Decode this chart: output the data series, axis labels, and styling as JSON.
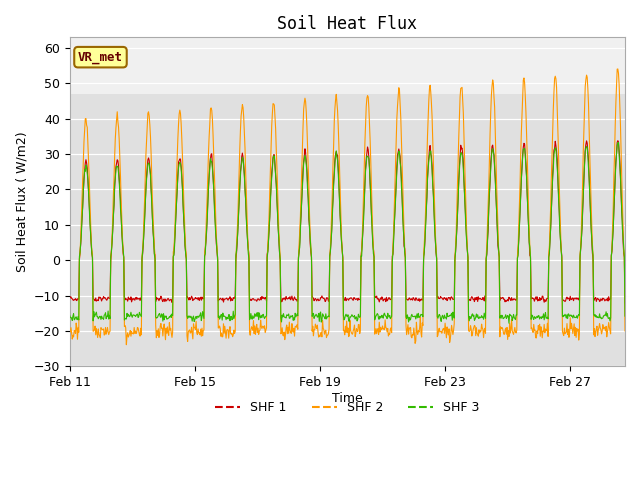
{
  "title": "Soil Heat Flux",
  "xlabel": "Time",
  "ylabel": "Soil Heat Flux ( W/m2)",
  "ylim": [
    -30,
    63
  ],
  "yticks": [
    -30,
    -20,
    -10,
    0,
    10,
    20,
    30,
    40,
    50,
    60
  ],
  "xtick_dates_day": [
    11,
    15,
    19,
    23,
    27
  ],
  "xtick_labels": [
    "Feb 11",
    "Feb 15",
    "Feb 19",
    "Feb 23",
    "Feb 27"
  ],
  "colors": {
    "shf1": "#cc0000",
    "shf2": "#ff9900",
    "shf3": "#33bb00"
  },
  "legend_labels": [
    "SHF 1",
    "SHF 2",
    "SHF 3"
  ],
  "annotation_text": "VR_met",
  "annotation_box_facecolor": "#ffff99",
  "annotation_box_edgecolor": "#996600",
  "plot_facecolor": "#f0f0f0",
  "fig_facecolor": "#ffffff",
  "band_ymin": -30,
  "band_ymax": 47,
  "band_color": "#e0e0e0"
}
